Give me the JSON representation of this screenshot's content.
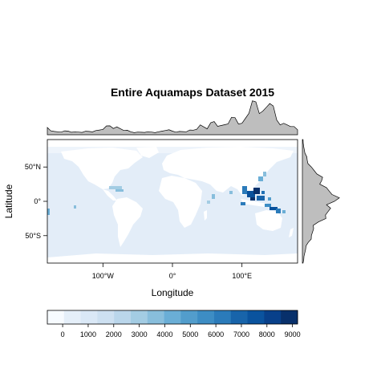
{
  "title": "Entire Aquamaps Dataset 2015",
  "x_axis": {
    "label": "Longitude",
    "ticks": [
      {
        "value": -100,
        "label": "100°W"
      },
      {
        "value": 0,
        "label": "0°"
      },
      {
        "value": 100,
        "label": "100°E"
      }
    ],
    "range": [
      -180,
      180
    ]
  },
  "y_axis": {
    "label": "Latitude",
    "ticks": [
      {
        "value": 50,
        "label": "50°N"
      },
      {
        "value": 0,
        "label": "0°"
      },
      {
        "value": -50,
        "label": "50°S"
      }
    ],
    "range": [
      -90,
      90
    ]
  },
  "colorbar": {
    "ticks": [
      {
        "value": 0,
        "label": "0"
      },
      {
        "value": 1000,
        "label": "1000"
      },
      {
        "value": 2000,
        "label": "2000"
      },
      {
        "value": 3000,
        "label": "3000"
      },
      {
        "value": 4000,
        "label": "4000"
      },
      {
        "value": 5000,
        "label": "5000"
      },
      {
        "value": 6000,
        "label": "6000"
      },
      {
        "value": 7000,
        "label": "7000"
      },
      {
        "value": 8000,
        "label": "8000"
      },
      {
        "value": 9000,
        "label": "9000"
      }
    ],
    "range": [
      -600,
      9200
    ],
    "colors": [
      "#f7fbff",
      "#e5eff9",
      "#dae8f6",
      "#cde0f1",
      "#bad6eb",
      "#a3cce3",
      "#88bedc",
      "#6aaed6",
      "#529dcc",
      "#3d8dc4",
      "#2b7bba",
      "#1864aa",
      "#0a539e",
      "#08408a",
      "#08306b"
    ]
  },
  "colors": {
    "ocean_low": "#e3edf8",
    "ocean_hot": "#08519c",
    "land": "#ffffff",
    "marginal_fill": "#bebebe",
    "marginal_line": "#000000",
    "frame": "#000000"
  },
  "chart_data": {
    "type": "heatmap",
    "title": "Entire Aquamaps Dataset 2015",
    "xlabel": "Longitude",
    "ylabel": "Latitude",
    "xlim": [
      -180,
      180
    ],
    "ylim": [
      -90,
      90
    ],
    "marginal_top": {
      "x": [
        -180,
        -170,
        -160,
        -150,
        -140,
        -130,
        -120,
        -110,
        -100,
        -90,
        -80,
        -70,
        -60,
        -50,
        -40,
        -30,
        -20,
        -10,
        0,
        10,
        20,
        30,
        40,
        50,
        60,
        70,
        80,
        90,
        100,
        110,
        120,
        130,
        140,
        150,
        160,
        170,
        180
      ],
      "y": [
        0.22,
        0.1,
        0.08,
        0.11,
        0.09,
        0.07,
        0.1,
        0.13,
        0.16,
        0.27,
        0.24,
        0.13,
        0.09,
        0.08,
        0.07,
        0.08,
        0.09,
        0.13,
        0.11,
        0.1,
        0.09,
        0.14,
        0.3,
        0.18,
        0.4,
        0.28,
        0.33,
        0.52,
        0.35,
        0.65,
        1.0,
        0.72,
        0.95,
        0.45,
        0.35,
        0.25,
        0.15
      ]
    },
    "marginal_right": {
      "lat": [
        90,
        80,
        70,
        60,
        50,
        40,
        30,
        20,
        10,
        0,
        -10,
        -20,
        -30,
        -40,
        -50,
        -60,
        -70,
        -80,
        -90
      ],
      "y": [
        0.02,
        0.04,
        0.08,
        0.15,
        0.28,
        0.45,
        0.6,
        0.75,
        0.92,
        1.0,
        0.88,
        0.72,
        0.5,
        0.35,
        0.28,
        0.18,
        0.1,
        0.05,
        0.02
      ]
    }
  }
}
